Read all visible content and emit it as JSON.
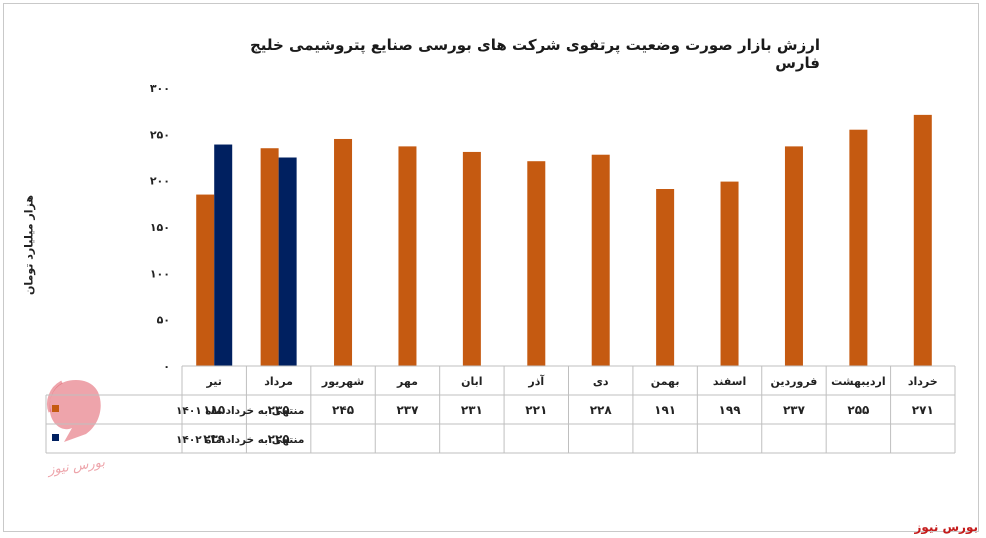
{
  "chart_data": {
    "type": "bar",
    "title": "ارزش بازار صورت وضعیت پرتفوی شرکت های بورسی صنایع پتروشیمی خلیج فارس",
    "ylabel": "هزار میلیارد تومان",
    "ylim": [
      0,
      300
    ],
    "yticks": [
      "۰",
      "۵۰",
      "۱۰۰",
      "۱۵۰",
      "۲۰۰",
      "۲۵۰",
      "۳۰۰"
    ],
    "ytick_values": [
      0,
      50,
      100,
      150,
      200,
      250,
      300
    ],
    "categories": [
      "تیر",
      "مرداد",
      "شهریور",
      "مهر",
      "ابان",
      "آذر",
      "دی",
      "بهمن",
      "اسفند",
      "فروردین",
      "اردیبهشت",
      "خرداد"
    ],
    "series": [
      {
        "name": "منتهی به خرداد ماه ۱۴۰۱",
        "color": "#c55a11",
        "values": [
          185,
          235,
          245,
          237,
          231,
          221,
          228,
          191,
          199,
          237,
          255,
          271
        ],
        "labels": [
          "۱۸۵",
          "۲۳۵",
          "۲۴۵",
          "۲۳۷",
          "۲۳۱",
          "۲۲۱",
          "۲۲۸",
          "۱۹۱",
          "۱۹۹",
          "۲۳۷",
          "۲۵۵",
          "۲۷۱"
        ]
      },
      {
        "name": "منتهی به خرداد ماه ۱۴۰۲",
        "color": "#002060",
        "values": [
          239,
          225,
          null,
          null,
          null,
          null,
          null,
          null,
          null,
          null,
          null,
          null
        ],
        "labels": [
          "۲۳۹",
          "۲۲۵",
          "",
          "",
          "",
          "",
          "",
          "",
          "",
          "",
          "",
          ""
        ]
      }
    ],
    "grid": false,
    "legend": "data-table"
  },
  "source": "بورس نیوز",
  "watermark": "بورس نیوز"
}
